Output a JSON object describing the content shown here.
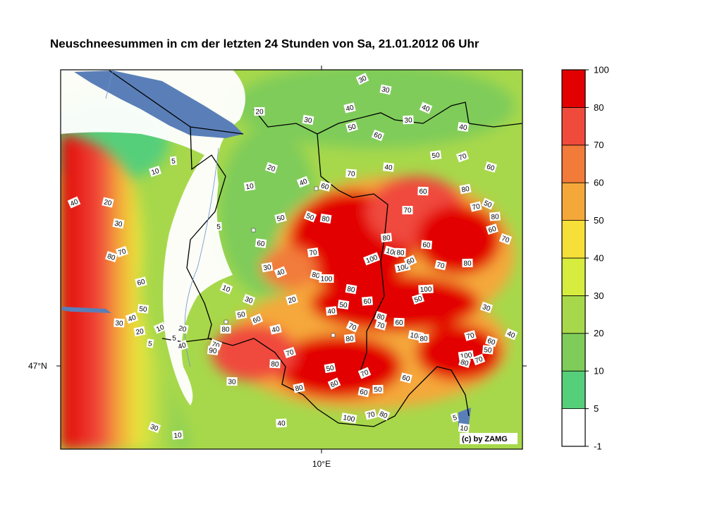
{
  "title": "Neuschneesummen in cm der letzten 24 Stunden von Sa, 21.01.2012 06 Uhr",
  "map": {
    "lat_label": "47°N",
    "lon_label": "10°E",
    "credit": "(c) by ZAMG",
    "contour_labels": [
      30,
      30,
      20,
      40,
      40,
      30,
      30,
      50,
      60,
      40,
      5,
      10,
      20,
      40,
      50,
      70,
      60,
      70,
      10,
      40,
      60,
      60,
      80,
      40,
      20,
      70,
      70,
      50,
      30,
      5,
      50,
      50,
      80,
      80,
      60,
      70,
      60,
      80,
      70,
      80,
      60,
      70,
      100,
      100,
      80,
      30,
      40,
      80,
      100,
      100,
      60,
      70,
      80,
      60,
      10,
      80,
      100,
      20,
      30,
      50,
      60,
      50,
      30,
      50,
      40,
      40,
      80,
      30,
      50,
      60,
      70,
      60,
      20,
      10,
      20,
      80,
      40,
      70,
      100,
      80,
      70,
      40,
      5,
      5,
      40,
      70,
      90,
      80,
      70,
      60,
      50,
      100,
      70,
      80,
      80,
      50,
      70,
      60,
      30,
      80,
      60,
      60,
      50,
      70,
      80,
      100,
      40,
      5,
      30,
      10,
      10
    ]
  },
  "colorbar": {
    "levels": [
      -1,
      5,
      10,
      20,
      30,
      40,
      50,
      60,
      70,
      80,
      100
    ],
    "colors": [
      "#ffffff",
      "#56cf7a",
      "#7fcc5a",
      "#a7d84b",
      "#d6ec3e",
      "#f6df38",
      "#f5a83a",
      "#f27b3a",
      "#f04a3c",
      "#e20000"
    ]
  }
}
